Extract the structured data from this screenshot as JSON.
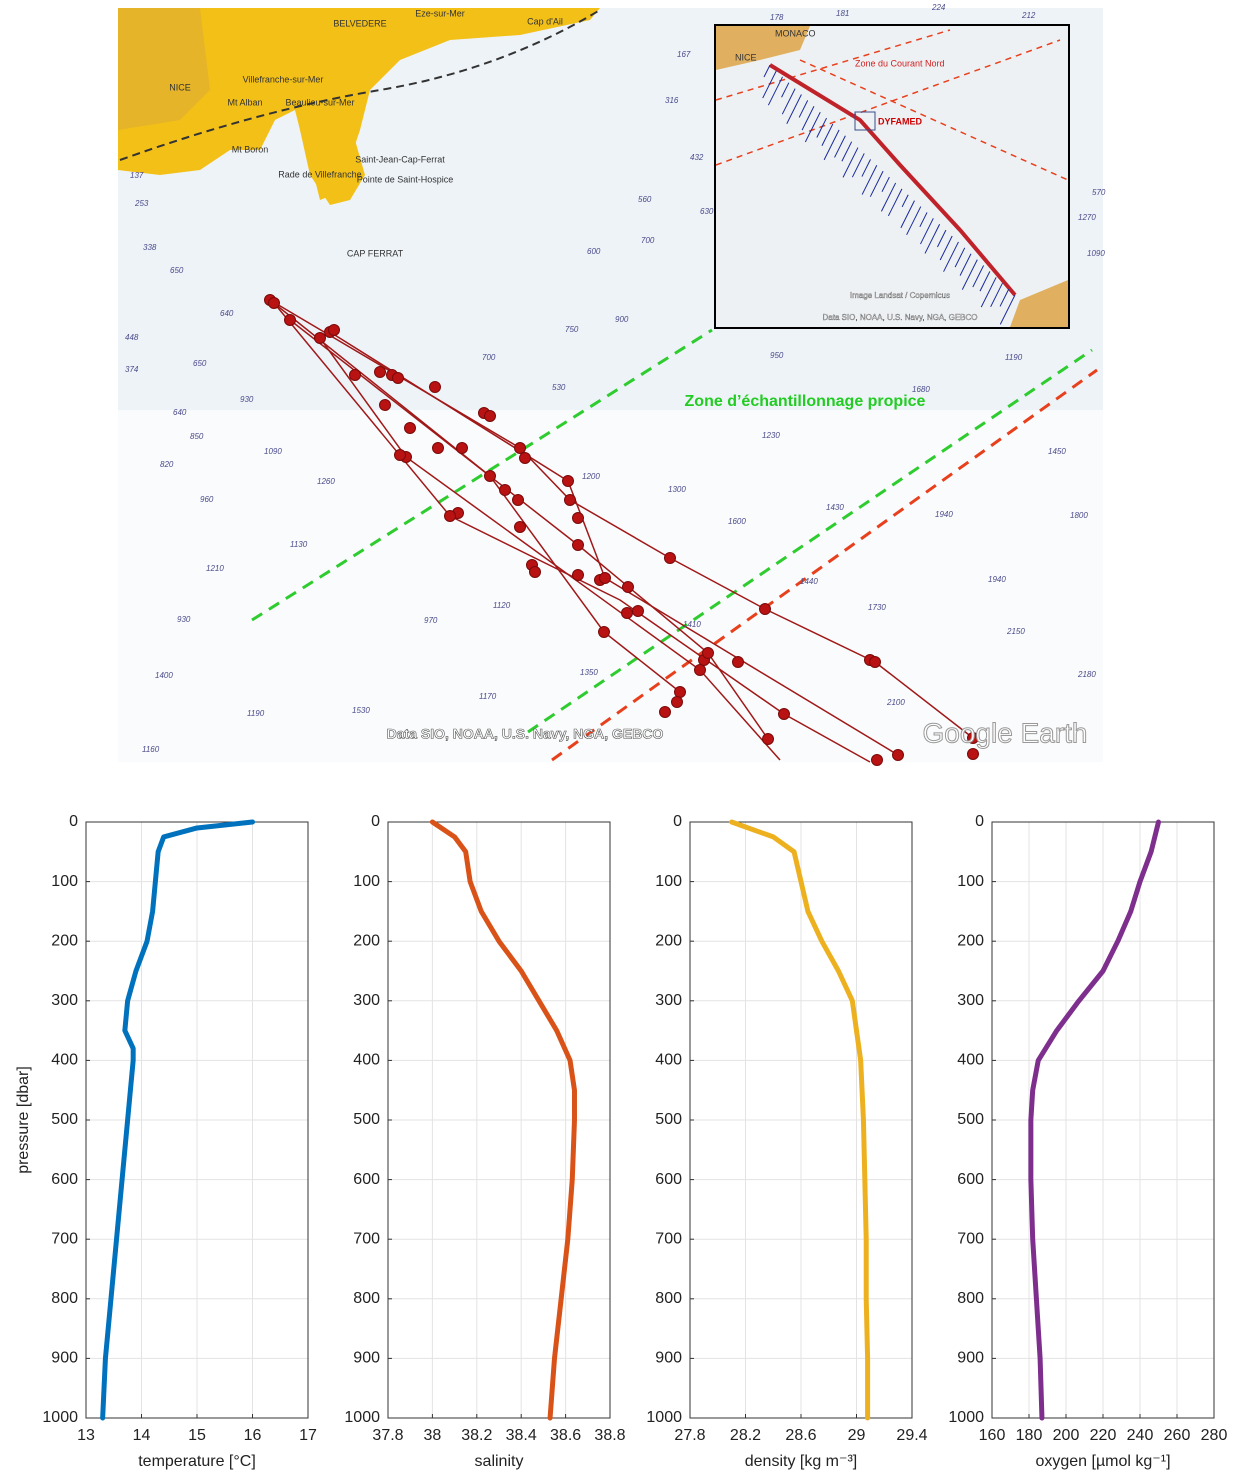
{
  "map": {
    "place_labels": [
      "NICE",
      "BELVEDERE",
      "Villefranche-sur-Mer",
      "Beaulieu-sur-Mer",
      "Mt Boron",
      "Mt Alban",
      "Saint-Jean-Cap-Ferrat",
      "Pointe de Saint-Hospice",
      "Rade de Villefranche",
      "CAP FERRAT",
      "Eze-sur-Mer",
      "Cap d'Ail"
    ],
    "soundings": [
      "750",
      "900",
      "950",
      "1190",
      "1680",
      "1230",
      "1450",
      "1300",
      "1200",
      "1600",
      "1430",
      "1940",
      "1800",
      "1440",
      "1940",
      "1730",
      "2150",
      "2180",
      "2100",
      "1410",
      "1350",
      "1170",
      "1530",
      "1190",
      "1400",
      "1160",
      "930",
      "1120",
      "970",
      "1210",
      "1130",
      "1260",
      "1090",
      "850",
      "820",
      "960",
      "930",
      "640",
      "650",
      "700",
      "530",
      "600",
      "640",
      "650",
      "448",
      "374",
      "338",
      "253",
      "137",
      "224",
      "212",
      "178",
      "181",
      "167",
      "316",
      "432",
      "560",
      "630",
      "700",
      "570",
      "1270",
      "1090"
    ],
    "zone_label": "Zone d’échantillonnage propice",
    "credit": "Data SIO, NOAA, U.S. Navy, NGA, GEBCO",
    "watermark": "Google Earth",
    "inset": {
      "labels": [
        "MONACO",
        "NICE",
        "Zone du Courant Nord",
        "DYFAMED"
      ],
      "image_credit": "Image Landsat / Copernicus",
      "credit": "Data SIO, NOAA, U.S. Navy, NGA, GEBCO"
    }
  },
  "chart_data": [
    {
      "type": "line",
      "color": "#0072bd",
      "x_label": "temperature [°C]",
      "y_label": "pressure [dbar]",
      "xlim": [
        13,
        17
      ],
      "xticks": [
        13,
        14,
        15,
        16,
        17
      ],
      "ylim": [
        0,
        1000
      ],
      "yticks": [
        0,
        100,
        200,
        300,
        400,
        500,
        600,
        700,
        800,
        900,
        1000
      ],
      "y_inverted": true,
      "grid": true,
      "x": [
        16.0,
        15.0,
        14.4,
        14.3,
        14.25,
        14.2,
        14.1,
        13.9,
        13.75,
        13.7,
        13.85,
        13.85,
        13.8,
        13.75,
        13.65,
        13.55,
        13.45,
        13.35,
        13.3
      ],
      "y": [
        0,
        10,
        25,
        50,
        100,
        150,
        200,
        250,
        300,
        350,
        380,
        400,
        450,
        500,
        600,
        700,
        800,
        900,
        1000
      ]
    },
    {
      "type": "line",
      "color": "#d95319",
      "x_label": "salinity",
      "xlim": [
        37.8,
        38.8
      ],
      "xticks": [
        37.8,
        38,
        38.2,
        38.4,
        38.6,
        38.8
      ],
      "ylim": [
        0,
        1000
      ],
      "yticks": [
        0,
        100,
        200,
        300,
        400,
        500,
        600,
        700,
        800,
        900,
        1000
      ],
      "y_inverted": true,
      "grid": true,
      "x": [
        38.0,
        38.1,
        38.15,
        38.17,
        38.22,
        38.3,
        38.4,
        38.48,
        38.56,
        38.62,
        38.64,
        38.64,
        38.63,
        38.61,
        38.58,
        38.55,
        38.53
      ],
      "y": [
        0,
        25,
        50,
        100,
        150,
        200,
        250,
        300,
        350,
        400,
        450,
        500,
        600,
        700,
        800,
        900,
        1000
      ]
    },
    {
      "type": "line",
      "color": "#edb120",
      "x_label": "density [kg m⁻³]",
      "xlim": [
        27.8,
        29.4
      ],
      "xticks": [
        27.8,
        28.2,
        28.6,
        29,
        29.4
      ],
      "ylim": [
        0,
        1000
      ],
      "yticks": [
        0,
        100,
        200,
        300,
        400,
        500,
        600,
        700,
        800,
        900,
        1000
      ],
      "y_inverted": true,
      "grid": true,
      "x": [
        28.1,
        28.4,
        28.55,
        28.6,
        28.65,
        28.75,
        28.87,
        28.97,
        29.0,
        29.03,
        29.05,
        29.06,
        29.07,
        29.07,
        29.08,
        29.08
      ],
      "y": [
        0,
        25,
        50,
        100,
        150,
        200,
        250,
        300,
        350,
        400,
        500,
        600,
        700,
        800,
        900,
        1000
      ]
    },
    {
      "type": "line",
      "color": "#7e2f8e",
      "x_label": "oxygen [µmol kg⁻¹]",
      "xlim": [
        160,
        280
      ],
      "xticks": [
        160,
        180,
        200,
        220,
        240,
        260,
        280
      ],
      "ylim": [
        0,
        1000
      ],
      "yticks": [
        0,
        100,
        200,
        300,
        400,
        500,
        600,
        700,
        800,
        900,
        1000
      ],
      "y_inverted": true,
      "grid": true,
      "x": [
        250,
        246,
        240,
        235,
        228,
        220,
        207,
        195,
        185,
        182,
        181,
        181,
        182,
        184,
        186,
        187
      ],
      "y": [
        0,
        50,
        100,
        150,
        200,
        250,
        300,
        350,
        400,
        450,
        500,
        600,
        700,
        800,
        900,
        1000
      ]
    }
  ]
}
